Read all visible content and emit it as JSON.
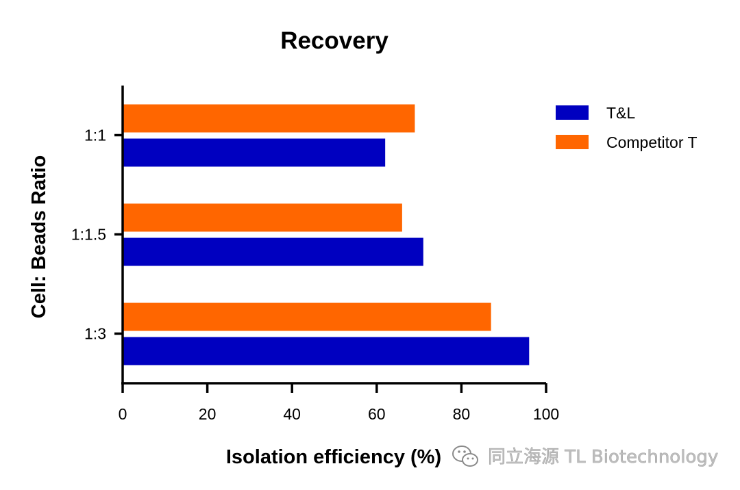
{
  "chart_data": {
    "type": "bar",
    "orientation": "horizontal",
    "title": "Recovery",
    "xlabel": "Isolation efficiency (%)",
    "ylabel": "Cell: Beads Ratio",
    "categories": [
      "1:1",
      "1:1.5",
      "1:3"
    ],
    "series": [
      {
        "name": "T&L",
        "color": "#0000c0",
        "values": [
          62,
          71,
          96
        ]
      },
      {
        "name": "Competitor T",
        "color": "#ff6600",
        "values": [
          69,
          66,
          87
        ]
      }
    ],
    "xlim": [
      0,
      100
    ],
    "xticks": [
      0,
      20,
      40,
      60,
      80,
      100
    ],
    "grid": false,
    "legend_position": "top-right"
  },
  "watermark": {
    "text": "同立海源 TL Biotechnology",
    "icon": "wechat-icon"
  }
}
